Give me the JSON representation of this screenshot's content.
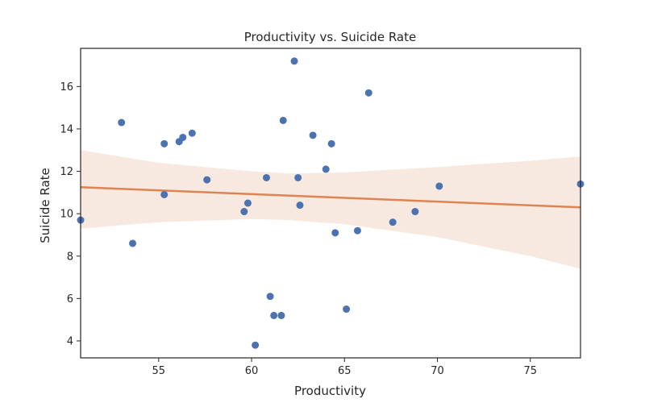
{
  "chart_data": {
    "type": "scatter",
    "title": "Productivity vs. Suicide Rate",
    "xlabel": "Productivity",
    "ylabel": "Suicide Rate",
    "xlim": [
      50.8,
      77.7
    ],
    "ylim": [
      3.2,
      17.8
    ],
    "xticks": [
      55,
      60,
      65,
      70,
      75
    ],
    "yticks": [
      4,
      6,
      8,
      10,
      12,
      14,
      16
    ],
    "grid": false,
    "points": [
      {
        "x": 50.8,
        "y": 9.7
      },
      {
        "x": 53.0,
        "y": 14.3
      },
      {
        "x": 53.6,
        "y": 8.6
      },
      {
        "x": 55.3,
        "y": 13.3
      },
      {
        "x": 55.3,
        "y": 10.9
      },
      {
        "x": 56.1,
        "y": 13.4
      },
      {
        "x": 56.3,
        "y": 13.6
      },
      {
        "x": 56.8,
        "y": 13.8
      },
      {
        "x": 57.6,
        "y": 11.6
      },
      {
        "x": 59.6,
        "y": 10.1
      },
      {
        "x": 59.8,
        "y": 10.5
      },
      {
        "x": 60.2,
        "y": 3.8
      },
      {
        "x": 60.8,
        "y": 11.7
      },
      {
        "x": 61.0,
        "y": 6.1
      },
      {
        "x": 61.2,
        "y": 5.2
      },
      {
        "x": 61.6,
        "y": 5.2
      },
      {
        "x": 61.7,
        "y": 14.4
      },
      {
        "x": 62.3,
        "y": 17.2
      },
      {
        "x": 62.5,
        "y": 11.7
      },
      {
        "x": 62.6,
        "y": 10.4
      },
      {
        "x": 63.3,
        "y": 13.7
      },
      {
        "x": 64.0,
        "y": 12.1
      },
      {
        "x": 64.3,
        "y": 13.3
      },
      {
        "x": 64.5,
        "y": 9.1
      },
      {
        "x": 65.1,
        "y": 5.5
      },
      {
        "x": 65.7,
        "y": 9.2
      },
      {
        "x": 66.3,
        "y": 15.7
      },
      {
        "x": 67.6,
        "y": 9.6
      },
      {
        "x": 68.8,
        "y": 10.1
      },
      {
        "x": 70.1,
        "y": 11.3
      },
      {
        "x": 77.7,
        "y": 11.4
      }
    ],
    "regression": {
      "x": [
        50.8,
        77.7
      ],
      "y": [
        11.25,
        10.3
      ],
      "ci_x": [
        50.8,
        55,
        60,
        62,
        65,
        70,
        75,
        77.7
      ],
      "ci_upper": [
        13.0,
        12.4,
        12.0,
        11.9,
        11.95,
        12.2,
        12.5,
        12.7
      ],
      "ci_lower": [
        9.3,
        9.6,
        9.75,
        9.7,
        9.5,
        8.9,
        8.0,
        7.4
      ]
    },
    "colors": {
      "points": "#4c72b0",
      "line": "#dd8452",
      "band": "#f8e9e0",
      "axes": "#262626"
    }
  }
}
